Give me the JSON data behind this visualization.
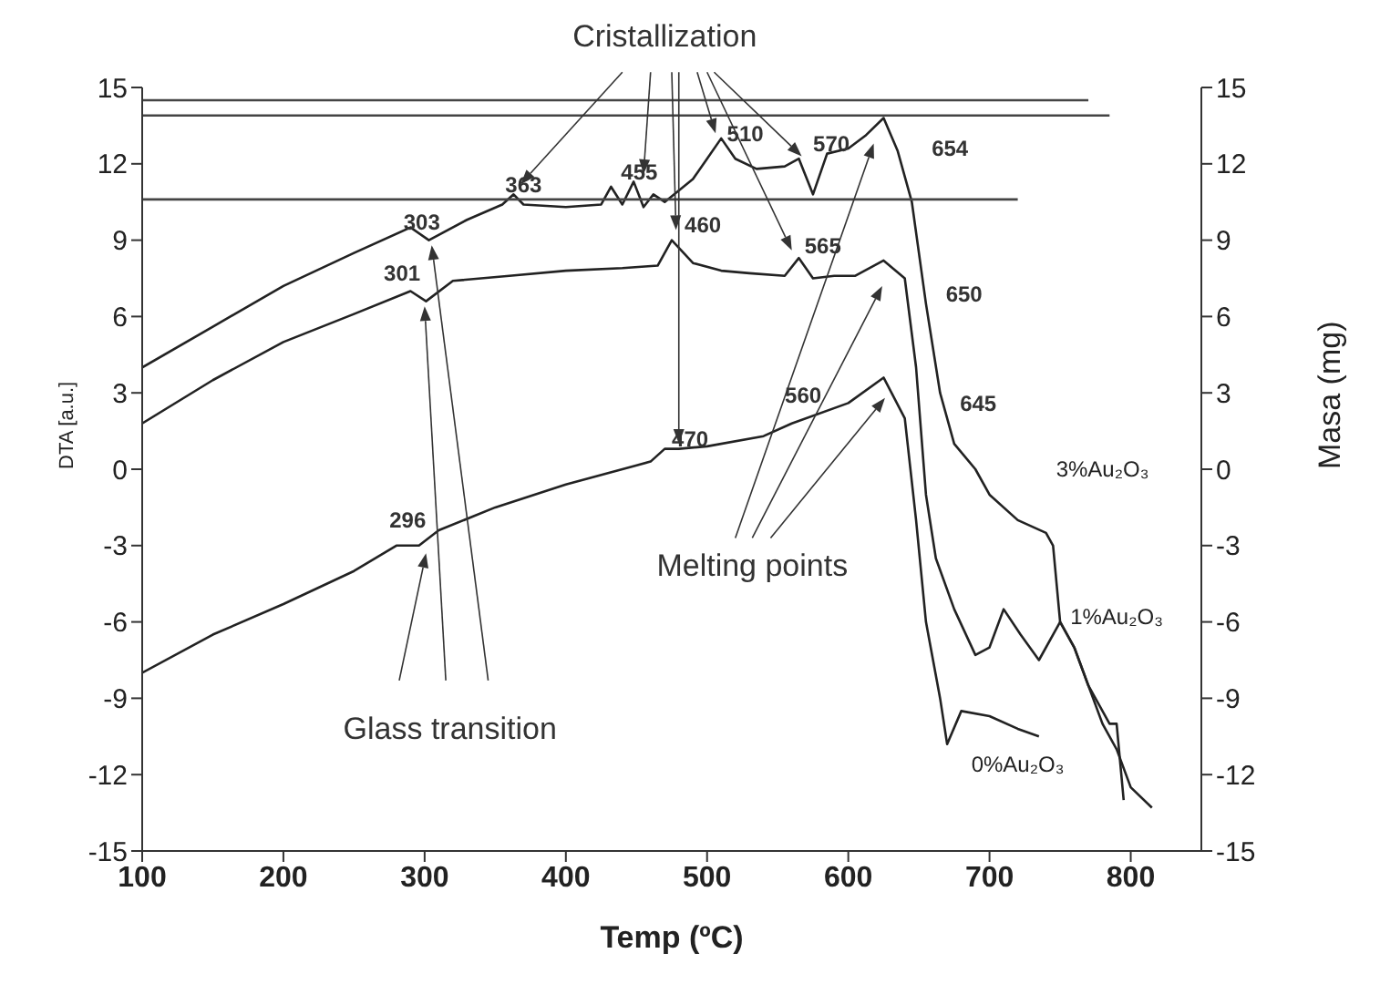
{
  "chart_data": {
    "type": "line",
    "xlabel": "Temp (ºC)",
    "ylabel": "DTA [a.u.]",
    "y2label": "Masa (mg)",
    "xlim": [
      100,
      850
    ],
    "xticks": [
      100,
      200,
      300,
      400,
      500,
      600,
      700,
      800
    ],
    "ylim": [
      -15,
      15
    ],
    "yticks": [
      -15,
      -12,
      -9,
      -6,
      -3,
      0,
      3,
      6,
      9,
      12,
      15
    ],
    "y2lim": [
      -15,
      15
    ],
    "y2ticks": [
      -15,
      -12,
      -9,
      -6,
      -3,
      0,
      3,
      6,
      9,
      12,
      15
    ],
    "marker": "none",
    "series": [
      {
        "name": "3%Au₂O₃",
        "color": "#222222",
        "x": [
          100,
          150,
          200,
          250,
          290,
          303,
          330,
          355,
          363,
          370,
          400,
          425,
          432,
          440,
          448,
          455,
          462,
          470,
          490,
          500,
          510,
          520,
          535,
          555,
          565,
          570,
          575,
          585,
          600,
          612,
          625,
          635,
          645,
          655,
          665,
          675,
          690,
          700,
          720,
          740,
          745,
          750,
          760,
          770,
          780,
          790,
          800,
          815
        ],
        "values": [
          4,
          5.6,
          7.2,
          8.5,
          9.5,
          9.0,
          9.8,
          10.4,
          10.8,
          10.4,
          10.3,
          10.4,
          11.1,
          10.4,
          11.3,
          10.3,
          10.8,
          10.5,
          11.4,
          12.2,
          13.0,
          12.2,
          11.8,
          11.9,
          12.2,
          11.5,
          10.8,
          12.4,
          12.6,
          13.1,
          13.8,
          12.5,
          10.5,
          6.5,
          3.0,
          1.0,
          0,
          -1,
          -2,
          -2.5,
          -3,
          -6,
          -7,
          -8.5,
          -10,
          -11,
          -12.5,
          -13.3
        ]
      },
      {
        "name": "1%Au₂O₃",
        "color": "#222222",
        "x": [
          100,
          150,
          200,
          250,
          290,
          301,
          320,
          360,
          400,
          440,
          465,
          475,
          490,
          510,
          530,
          555,
          565,
          575,
          590,
          605,
          625,
          640,
          648,
          655,
          662,
          675,
          690,
          700,
          710,
          722,
          735,
          750,
          760,
          770,
          785,
          790,
          795
        ],
        "values": [
          1.8,
          3.5,
          5,
          6.1,
          7,
          6.6,
          7.4,
          7.6,
          7.8,
          7.9,
          8.0,
          9.0,
          8.1,
          7.8,
          7.7,
          7.6,
          8.3,
          7.5,
          7.6,
          7.6,
          8.2,
          7.5,
          4.0,
          -1.0,
          -3.5,
          -5.5,
          -7.3,
          -7.0,
          -5.5,
          -6.5,
          -7.5,
          -6.0,
          -7.0,
          -8.5,
          -10.0,
          -10.0,
          -13.0
        ]
      },
      {
        "name": "0%Au₂O₃",
        "color": "#222222",
        "x": [
          100,
          150,
          200,
          250,
          280,
          296,
          310,
          350,
          400,
          460,
          470,
          480,
          500,
          540,
          560,
          600,
          625,
          640,
          648,
          655,
          665,
          670,
          680,
          700,
          720,
          735
        ],
        "values": [
          -8,
          -6.5,
          -5.3,
          -4,
          -3,
          -3,
          -2.4,
          -1.5,
          -0.6,
          0.3,
          0.8,
          0.8,
          0.9,
          1.3,
          1.8,
          2.6,
          3.6,
          2.0,
          -2.0,
          -6.0,
          -9.0,
          -10.8,
          -9.5,
          -9.7,
          -10.2,
          -10.5
        ]
      },
      {
        "color": "#444444",
        "x": [
          100,
          770
        ],
        "values": [
          14.5,
          14.5
        ]
      },
      {
        "color": "#444444",
        "x": [
          100,
          785
        ],
        "values": [
          13.9,
          13.9
        ]
      },
      {
        "color": "#444444",
        "x": [
          100,
          720
        ],
        "values": [
          10.6,
          10.6
        ]
      }
    ],
    "annotations": [
      "Cristallization",
      "Glass transition",
      "Melting points",
      "363",
      "455",
      "510",
      "570",
      "654",
      "303",
      "460",
      "565",
      "650",
      "301",
      "470",
      "560",
      "645",
      "296"
    ]
  }
}
